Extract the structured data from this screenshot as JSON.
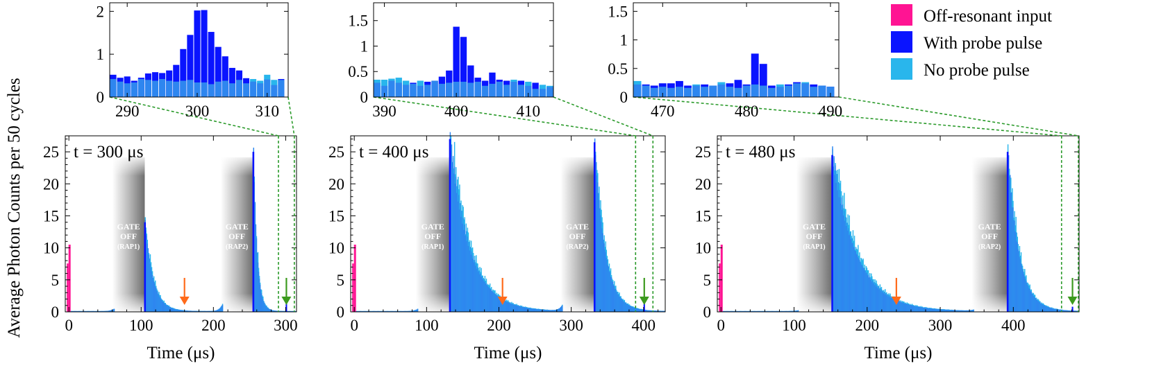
{
  "figure": {
    "ylabel": "Average Photon Counts per 50 cycles",
    "legend": [
      {
        "label": "Off-resonant input",
        "color": "#ff1493"
      },
      {
        "label": "With probe pulse",
        "color": "#0a14ff"
      },
      {
        "label": "No probe pulse",
        "color": "#29b6ec"
      }
    ]
  },
  "chart_data": [
    {
      "type": "bar",
      "t_label": "t = 300 μs",
      "xlabel": "Time (μs)",
      "xlim": [
        -5,
        315
      ],
      "ylim": [
        0,
        27.5
      ],
      "xticks": [
        0,
        100,
        200,
        300
      ],
      "yticks": [
        0,
        5,
        10,
        15,
        20,
        25
      ],
      "gates": [
        {
          "x0": 60,
          "x1": 105,
          "label": [
            "GATE",
            "OFF",
            "(RAP1)"
          ]
        },
        {
          "x0": 210,
          "x1": 255,
          "label": [
            "GATE",
            "OFF",
            "(RAP2)"
          ]
        }
      ],
      "gate_ends": [
        105,
        255
      ],
      "bumps": [
        {
          "center": 78,
          "height": 1.8,
          "width": 9
        },
        {
          "center": 228,
          "height": 5.0,
          "width": 9
        }
      ],
      "peaks": [
        {
          "x": 105,
          "height": 14.0,
          "tau": 11
        },
        {
          "x": 255,
          "height": 25.0,
          "tau": 5
        }
      ],
      "offres": {
        "x": 0,
        "height": 10.5
      },
      "probe": {
        "x": 301,
        "height": 2.0
      },
      "orange_arrow_x": 160,
      "green_arrow_x": 301,
      "window": [
        290,
        312
      ],
      "inset": {
        "xlim": [
          287.5,
          313
        ],
        "ylim": [
          0,
          2.2
        ],
        "xticks": [
          290,
          300,
          310
        ],
        "yticks": [
          "0",
          "1",
          "2"
        ],
        "x": [
          288,
          289,
          290,
          291,
          292,
          293,
          294,
          295,
          296,
          297,
          298,
          299,
          300,
          301,
          302,
          303,
          304,
          305,
          306,
          307,
          308,
          309,
          310,
          311,
          312
        ],
        "with_probe": [
          0.52,
          0.45,
          0.48,
          0.38,
          0.45,
          0.55,
          0.58,
          0.56,
          0.62,
          0.75,
          1.12,
          1.45,
          2.02,
          2.03,
          1.52,
          1.17,
          0.95,
          0.68,
          0.62,
          0.44,
          0.36,
          0.32,
          0.41,
          0.28,
          0.42
        ],
        "no_probe": [
          0.42,
          0.36,
          0.32,
          0.34,
          0.42,
          0.4,
          0.38,
          0.42,
          0.38,
          0.36,
          0.38,
          0.4,
          0.34,
          0.34,
          0.3,
          0.36,
          0.38,
          0.32,
          0.4,
          0.32,
          0.42,
          0.38,
          0.52,
          0.4,
          0.4
        ]
      }
    },
    {
      "type": "bar",
      "t_label": "t = 400 μs",
      "xlabel": "Time (μs)",
      "xlim": [
        -5,
        430
      ],
      "ylim": [
        0,
        27.5
      ],
      "xticks": [
        0,
        100,
        200,
        300,
        400
      ],
      "yticks": [
        0,
        5,
        10,
        15,
        20,
        25
      ],
      "gates": [
        {
          "x0": 85,
          "x1": 132,
          "label": [
            "GATE",
            "OFF",
            "(RAP1)"
          ]
        },
        {
          "x0": 285,
          "x1": 332,
          "label": [
            "GATE",
            "OFF",
            "(RAP2)"
          ]
        }
      ],
      "gate_ends": [
        132,
        332
      ],
      "bumps": [
        {
          "center": 103,
          "height": 1.6,
          "width": 9
        },
        {
          "center": 303,
          "height": 4.0,
          "width": 9
        }
      ],
      "peaks": [
        {
          "x": 132,
          "height": 27.0,
          "tau": 27
        },
        {
          "x": 332,
          "height": 26.5,
          "tau": 14
        }
      ],
      "offres": {
        "x": 0,
        "height": 10.5
      },
      "probe": {
        "x": 401,
        "height": 1.4
      },
      "orange_arrow_x": 205,
      "green_arrow_x": 401,
      "window": [
        389,
        413
      ],
      "inset": {
        "xlim": [
          388.5,
          413.5
        ],
        "ylim": [
          0,
          1.85
        ],
        "xticks": [
          390,
          400,
          410
        ],
        "yticks": [
          "0",
          "0.5",
          "1",
          "1.5"
        ],
        "x": [
          389,
          390,
          391,
          392,
          393,
          394,
          395,
          396,
          397,
          398,
          399,
          400,
          401,
          402,
          403,
          404,
          405,
          406,
          407,
          408,
          409,
          410,
          411,
          412,
          413
        ],
        "with_probe": [
          0.28,
          0.22,
          0.32,
          0.28,
          0.24,
          0.28,
          0.22,
          0.3,
          0.32,
          0.4,
          0.52,
          1.38,
          1.18,
          0.62,
          0.38,
          0.32,
          0.48,
          0.34,
          0.32,
          0.3,
          0.32,
          0.22,
          0.28,
          0.16,
          0.2
        ],
        "no_probe": [
          0.34,
          0.34,
          0.36,
          0.38,
          0.32,
          0.26,
          0.32,
          0.24,
          0.32,
          0.26,
          0.28,
          0.3,
          0.3,
          0.28,
          0.3,
          0.22,
          0.26,
          0.3,
          0.24,
          0.34,
          0.24,
          0.3,
          0.16,
          0.24,
          0.22
        ]
      }
    },
    {
      "type": "bar",
      "t_label": "t = 480 μs",
      "xlabel": "Time (μs)",
      "xlim": [
        -5,
        490
      ],
      "ylim": [
        0,
        27.5
      ],
      "xticks": [
        0,
        100,
        200,
        300,
        400
      ],
      "yticks": [
        0,
        5,
        10,
        15,
        20,
        25
      ],
      "gates": [
        {
          "x0": 103,
          "x1": 152,
          "label": [
            "GATE",
            "OFF",
            "(RAP1)"
          ]
        },
        {
          "x0": 343,
          "x1": 392,
          "label": [
            "GATE",
            "OFF",
            "(RAP2)"
          ]
        }
      ],
      "gate_ends": [
        152,
        392
      ],
      "bumps": [
        {
          "center": 122,
          "height": 0.5,
          "width": 10
        },
        {
          "center": 363,
          "height": 1.2,
          "width": 9
        }
      ],
      "peaks": [
        {
          "x": 152,
          "height": 24.5,
          "tau": 33
        },
        {
          "x": 392,
          "height": 25.0,
          "tau": 15
        }
      ],
      "offres": {
        "x": 0,
        "height": 10.5
      },
      "probe": {
        "x": 481,
        "height": 0.8
      },
      "orange_arrow_x": 240,
      "green_arrow_x": 481,
      "window": [
        466,
        489
      ],
      "inset": {
        "xlim": [
          466.5,
          491
        ],
        "ylim": [
          0,
          1.65
        ],
        "xticks": [
          470,
          480,
          490
        ],
        "yticks": [
          "0",
          "0.5",
          "1",
          "1.5"
        ],
        "x": [
          467,
          468,
          469,
          470,
          471,
          472,
          473,
          474,
          475,
          476,
          477,
          478,
          479,
          480,
          481,
          482,
          483,
          484,
          485,
          486,
          487,
          488,
          489,
          490
        ],
        "with_probe": [
          0.22,
          0.22,
          0.2,
          0.24,
          0.24,
          0.28,
          0.2,
          0.2,
          0.22,
          0.2,
          0.22,
          0.24,
          0.3,
          0.22,
          0.76,
          0.58,
          0.2,
          0.18,
          0.22,
          0.26,
          0.24,
          0.22,
          0.2,
          0.18
        ],
        "no_probe": [
          0.28,
          0.2,
          0.16,
          0.18,
          0.16,
          0.18,
          0.16,
          0.22,
          0.18,
          0.2,
          0.26,
          0.18,
          0.16,
          0.2,
          0.22,
          0.2,
          0.16,
          0.22,
          0.2,
          0.24,
          0.26,
          0.18,
          0.2,
          0.18
        ]
      }
    }
  ]
}
